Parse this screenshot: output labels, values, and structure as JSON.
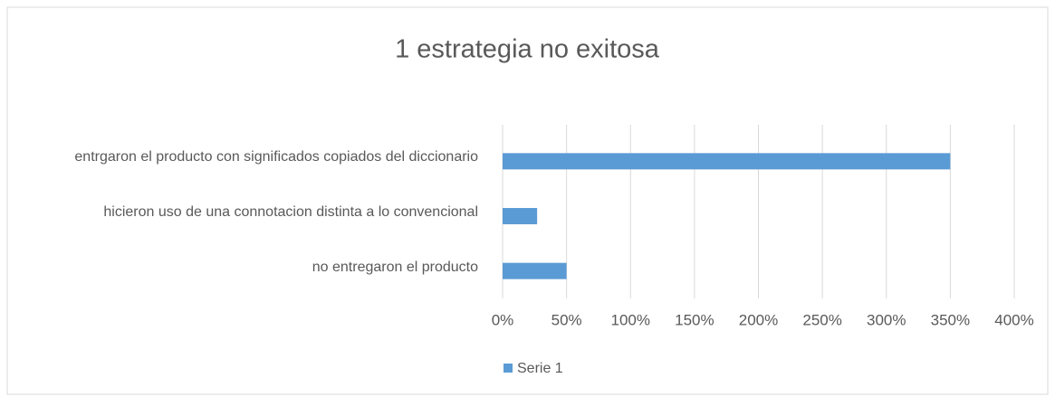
{
  "chart_data": {
    "type": "bar",
    "orientation": "horizontal",
    "title": "1 estrategia no exitosa",
    "categories": [
      "entrgaron el producto con significados copiados del diccionario",
      "hicieron uso de una connotacion distinta a lo convencional",
      "no entregaron el producto"
    ],
    "series": [
      {
        "name": "Serie 1",
        "color": "#5b9bd5",
        "values": [
          350,
          27,
          50
        ]
      }
    ],
    "xlim": [
      0,
      400
    ],
    "xticks": [
      {
        "value": 0,
        "label": "0%"
      },
      {
        "value": 50,
        "label": "50%"
      },
      {
        "value": 100,
        "label": "100%"
      },
      {
        "value": 150,
        "label": "150%"
      },
      {
        "value": 200,
        "label": "200%"
      },
      {
        "value": 250,
        "label": "250%"
      },
      {
        "value": 300,
        "label": "300%"
      },
      {
        "value": 350,
        "label": "350%"
      },
      {
        "value": 400,
        "label": "400%"
      }
    ],
    "grid": true,
    "legend": "bottom"
  }
}
